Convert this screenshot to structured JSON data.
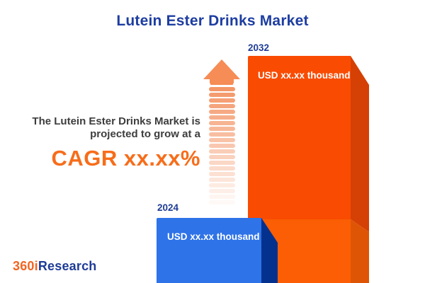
{
  "title": "Lutein Ester Drinks Market",
  "subtitle_line1": "The Lutein Ester Drinks Market is",
  "subtitle_line2": "projected to grow at a",
  "cagr_text": "CAGR xx.xx%",
  "bars": [
    {
      "year": "2024",
      "value_label": "USD xx.xx thousand",
      "front_color": "#2e73e8",
      "side_color": "#05318e"
    },
    {
      "year": "2032",
      "value_label": "USD xx.xx thousand",
      "front_color": "#f94b02",
      "front_color_lower": "#fb5e04",
      "side_color": "#d54004",
      "side_color_lower": "#de5505"
    }
  ],
  "arrow": {
    "color": "#f68c56",
    "stripe_color": "#f3905f",
    "stripe_count": 21
  },
  "logo": {
    "prefix": "360i",
    "suffix": "Research",
    "prefix_color": "#f26522",
    "suffix_color": "#1e3c96"
  },
  "colors": {
    "title": "#1d3da1",
    "subtitle": "#3d3d3d",
    "cagr": "#f76d1a",
    "year_label": "#1e3c96",
    "usd_label": "#ffffff",
    "background": "#ffffff"
  },
  "chart_data": {
    "type": "bar",
    "categories": [
      "2024",
      "2032"
    ],
    "values_masked": true,
    "value_labels": [
      "USD xx.xx thousand",
      "USD xx.xx thousand"
    ],
    "relative_heights": [
      0.29,
      1.0
    ],
    "title": "Lutein Ester Drinks Market",
    "annotation": "The Lutein Ester Drinks Market is projected to grow at a CAGR xx.xx%",
    "xlabel": "",
    "ylabel": "",
    "grid": false,
    "legend": false,
    "series_colors": [
      "#2e73e8",
      "#f94b02"
    ]
  }
}
